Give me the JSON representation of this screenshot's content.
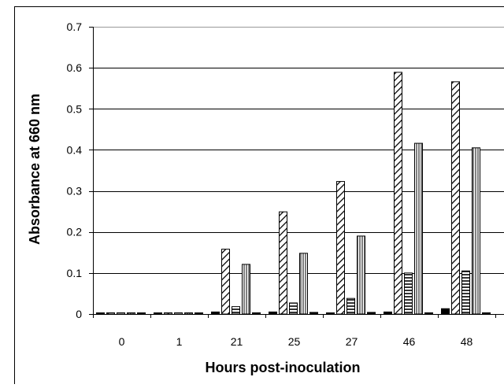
{
  "chart_data": {
    "type": "bar",
    "categories": [
      "0",
      "1",
      "21",
      "25",
      "27",
      "46",
      "48"
    ],
    "series": [
      {
        "pattern": "solid",
        "values": [
          0,
          0,
          0.005,
          0.005,
          0.002,
          0.005,
          0.013
        ]
      },
      {
        "pattern": "diagonal-hatch",
        "values": [
          0,
          0,
          0.158,
          0.249,
          0.323,
          0.589,
          0.566
        ]
      },
      {
        "pattern": "horizontal-lines",
        "values": [
          0,
          0,
          0.018,
          0.027,
          0.038,
          0.1,
          0.105
        ]
      },
      {
        "pattern": "vertical-lines",
        "values": [
          0,
          0,
          0.121,
          0.148,
          0.19,
          0.416,
          0.405
        ]
      },
      {
        "pattern": "solid",
        "values": [
          0,
          0,
          0.003,
          0.004,
          0.004,
          0.003,
          0.003
        ]
      }
    ],
    "xlabel": "Hours post-inoculation",
    "ylabel": "Absorbance at 660 nm",
    "ylim": [
      0,
      0.7
    ],
    "yticks": [
      "0",
      "0.1",
      "0.2",
      "0.3",
      "0.4",
      "0.5",
      "0.6",
      "0.7"
    ],
    "grid": true,
    "colors": {
      "bar_stroke": "#000000",
      "grid": "#000000",
      "top_grid": "#999999",
      "background": "#ffffff"
    }
  }
}
